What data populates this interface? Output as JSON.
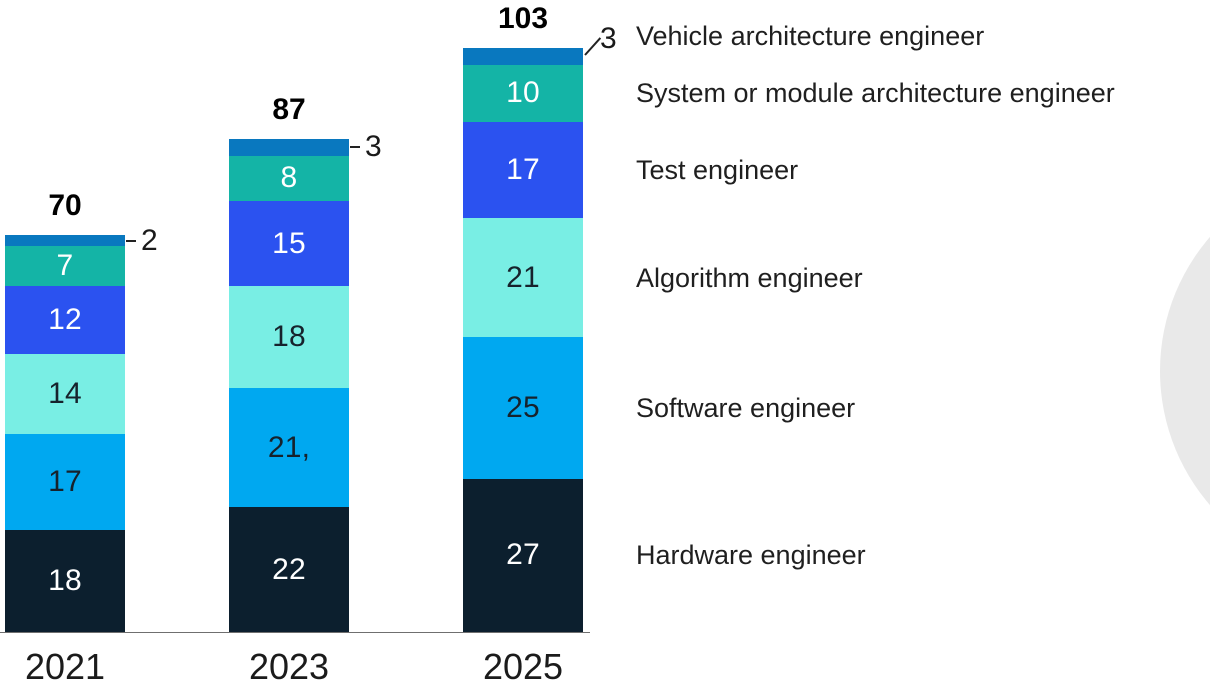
{
  "chart_data": {
    "type": "bar",
    "stacked": true,
    "title": "",
    "xlabel": "",
    "ylabel": "",
    "grid": false,
    "legend_position": "right",
    "categories": [
      "2021",
      "2023",
      "2025"
    ],
    "totals": [
      "70",
      "87",
      "103"
    ],
    "series": [
      {
        "name": "Hardware engineer",
        "color": "#0c1f2e",
        "label_color": "#ffffff",
        "values": [
          18,
          22,
          27
        ],
        "labels": [
          "18",
          "22",
          "27"
        ]
      },
      {
        "name": "Software engineer",
        "color": "#00a8f0",
        "label_color": "#16222c",
        "values": [
          17,
          21,
          25
        ],
        "labels": [
          "17",
          "21,",
          "25"
        ]
      },
      {
        "name": "Algorithm engineer",
        "color": "#79eee4",
        "label_color": "#16222c",
        "values": [
          14,
          18,
          21
        ],
        "labels": [
          "14",
          "18",
          "21"
        ]
      },
      {
        "name": "Test engineer",
        "color": "#2b52f0",
        "label_color": "#ffffff",
        "values": [
          12,
          15,
          17
        ],
        "labels": [
          "12",
          "15",
          "17"
        ]
      },
      {
        "name": "System or module architecture engineer",
        "color": "#14b4a6",
        "label_color": "#ffffff",
        "values": [
          7,
          8,
          10
        ],
        "labels": [
          "7",
          "8",
          "10"
        ]
      },
      {
        "name": "Vehicle architecture engineer",
        "color": "#0978bf",
        "label_color": "#16222c",
        "values": [
          2,
          3,
          3
        ],
        "labels": [
          "2",
          "3",
          "3"
        ],
        "label_outside": true
      }
    ],
    "legend_top_to_bottom": [
      "Vehicle architecture engineer",
      "System or module architecture engineer",
      "Test engineer",
      "Algorithm engineer",
      "Software engineer",
      "Hardware engineer"
    ]
  },
  "decor": {
    "circle_color": "#e9e9e9",
    "axis_color": "#6f6f6f"
  }
}
